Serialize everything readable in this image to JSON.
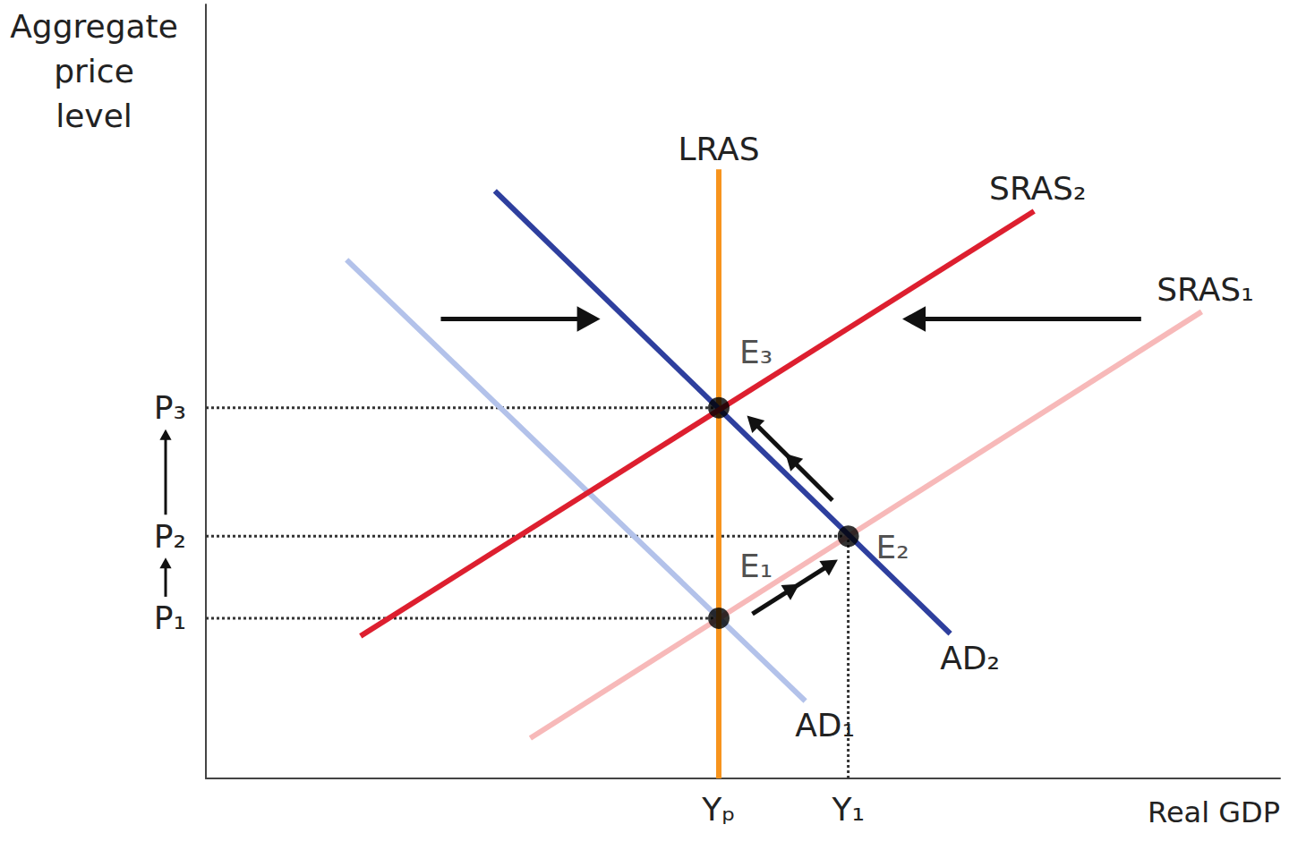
{
  "chart_data": {
    "type": "line",
    "x_label": "Real GDP",
    "y_label": "Aggregate\nprice\nlevel",
    "xlim": [
      0,
      100
    ],
    "ylim": [
      0,
      100
    ],
    "xticks": [
      {
        "value": 47.75,
        "label": "Yₚ"
      },
      {
        "value": 59.8,
        "label": "Y₁"
      }
    ],
    "yticks": [
      {
        "value": 20.7,
        "label": "P₁"
      },
      {
        "value": 31.3,
        "label": "P₂"
      },
      {
        "value": 47.9,
        "label": "P₃"
      }
    ],
    "grid": false,
    "series": [
      {
        "name": "AD₁",
        "color": "#b3c2ea",
        "x": [
          13.1,
          55.8
        ],
        "values": [
          67.0,
          10.0
        ]
      },
      {
        "name": "SRAS₁",
        "color": "#f7b9b9",
        "x": [
          30.2,
          92.7
        ],
        "values": [
          5.2,
          60.3
        ]
      },
      {
        "name": "LRAS",
        "color": "#f7941d",
        "x": [
          47.75,
          47.75
        ],
        "values": [
          0,
          78.7
        ]
      },
      {
        "name": "AD₂",
        "color": "#2e3f9e",
        "x": [
          26.9,
          69.3
        ],
        "values": [
          75.9,
          18.7
        ]
      },
      {
        "name": "SRAS₂",
        "color": "#dd1f2f",
        "x": [
          14.4,
          77.1
        ],
        "values": [
          18.4,
          73.3
        ]
      }
    ],
    "points": [
      {
        "label": "E₁",
        "x": 47.75,
        "y": 20.7
      },
      {
        "label": "E₂",
        "x": 59.8,
        "y": 31.3
      },
      {
        "label": "E₃",
        "x": 47.75,
        "y": 47.9
      }
    ]
  }
}
